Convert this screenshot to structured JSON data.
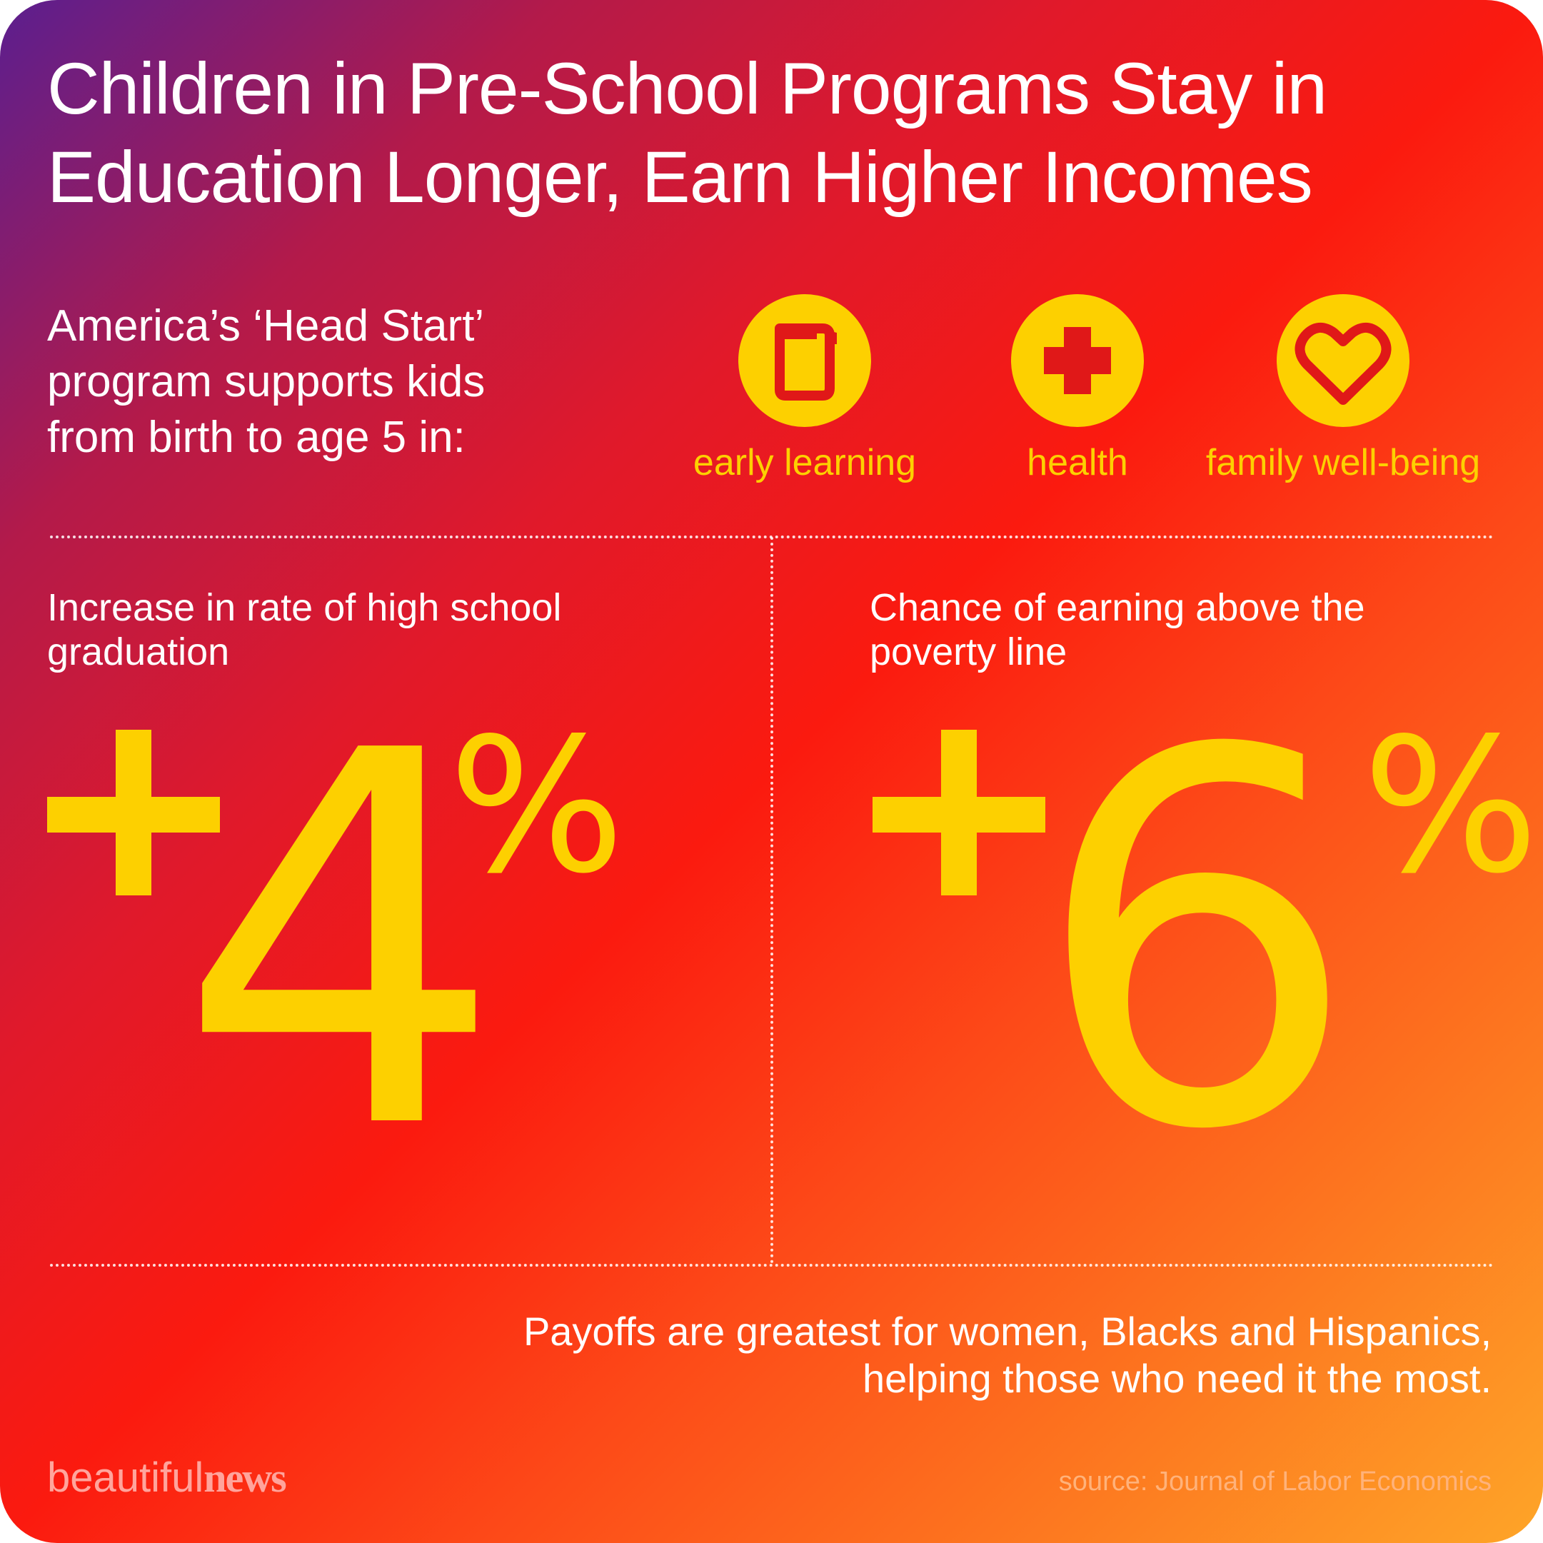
{
  "title": {
    "line1": "Children in Pre-School Programs Stay in",
    "line2": "Education Longer, Earn Higher Incomes"
  },
  "intro": {
    "line1": "America’s ‘Head Start’",
    "line2": "program supports kids",
    "line3": "from birth to age 5 in:"
  },
  "pillars": [
    {
      "label": "early learning",
      "icon": "book-icon"
    },
    {
      "label": "health",
      "icon": "cross-icon"
    },
    {
      "label": "family well-being",
      "icon": "heart-icon"
    }
  ],
  "stats": [
    {
      "label_line1": "Increase in rate of high school",
      "label_line2": "graduation",
      "sign": "+",
      "value": "4",
      "unit": "%"
    },
    {
      "label_line1": "Chance of earning above the",
      "label_line2": "poverty line",
      "sign": "+",
      "value": "6",
      "unit": "%"
    }
  ],
  "note": {
    "line1": "Payoffs are greatest for women, Blacks and Hispanics,",
    "line2": "helping those who need it the most."
  },
  "brand": {
    "part1": "beautiful",
    "part2": "news"
  },
  "source": "source: Journal of Labor Economics",
  "colors": {
    "accent": "#fdd000",
    "text": "#ffffff",
    "brand": "#ffa49c"
  }
}
